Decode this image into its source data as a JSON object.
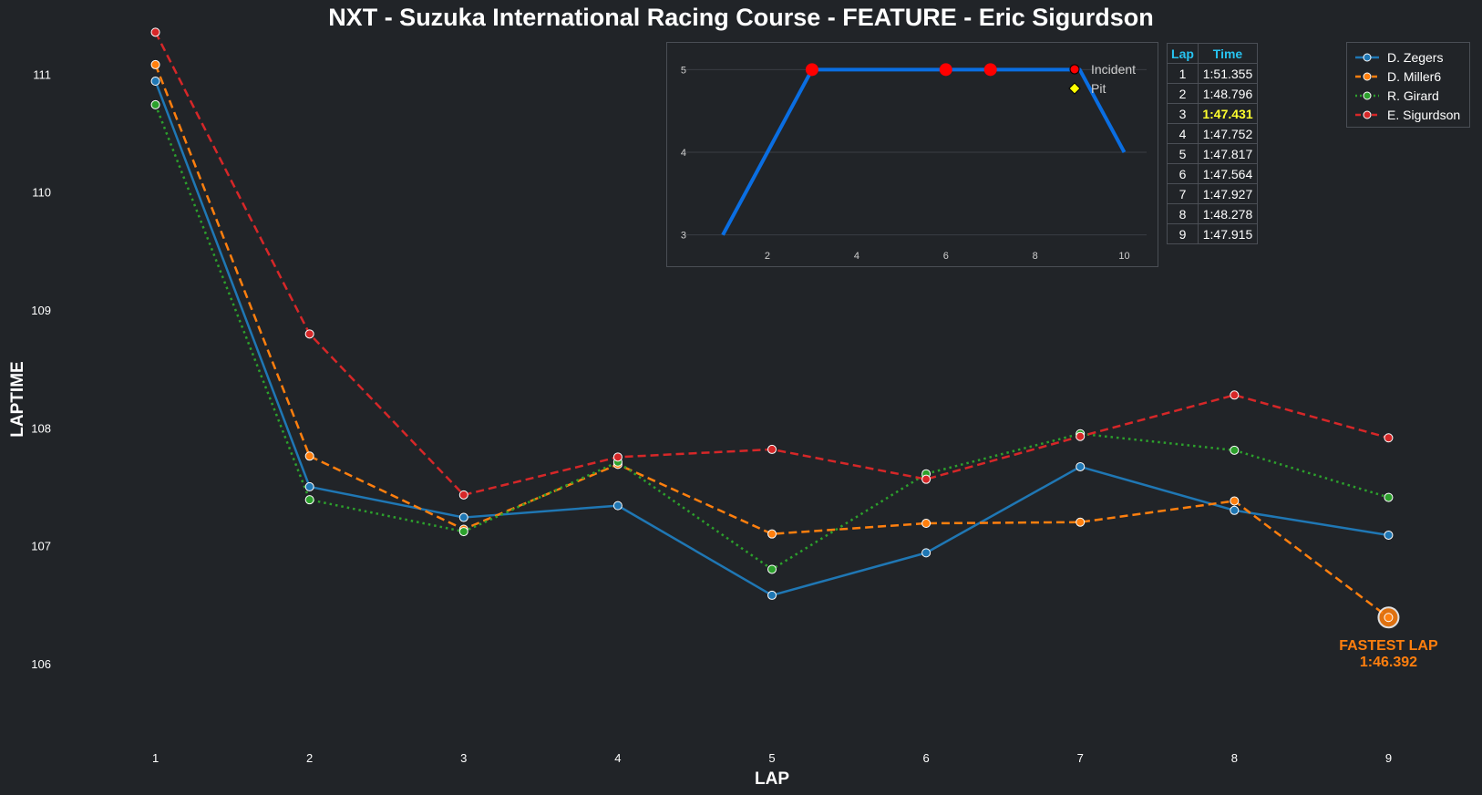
{
  "title": "NXT - Suzuka International Racing Course - FEATURE - Eric Sigurdson",
  "chart_data": [
    {
      "type": "line",
      "xlabel": "LAP",
      "ylabel": "LAPTIME",
      "x": [
        1,
        2,
        3,
        4,
        5,
        6,
        7,
        8,
        9
      ],
      "xlim": [
        0.5,
        9.5
      ],
      "ylim": [
        105.35,
        111.35
      ],
      "xticks": [
        "1",
        "2",
        "3",
        "4",
        "5",
        "6",
        "7",
        "8",
        "9"
      ],
      "yticks": [
        "106",
        "107",
        "108",
        "109",
        "110",
        "111"
      ],
      "grid": false,
      "legend_position": "top-right",
      "series": [
        {
          "name": "D. Zegers",
          "color": "#1f77b4",
          "dash": "solid",
          "values": [
            110.94,
            107.5,
            107.24,
            107.34,
            106.58,
            106.94,
            107.67,
            107.3,
            107.09
          ]
        },
        {
          "name": "D. Miller6",
          "color": "#ff7f0e",
          "dash": "dashed",
          "values": [
            111.08,
            107.76,
            107.14,
            107.69,
            107.1,
            107.19,
            107.2,
            107.38,
            106.392
          ]
        },
        {
          "name": "R. Girard",
          "color": "#2ca02c",
          "dash": "dotted",
          "values": [
            110.74,
            107.39,
            107.12,
            107.71,
            106.8,
            107.61,
            107.95,
            107.81,
            107.41
          ]
        },
        {
          "name": "E. Sigurdson",
          "color": "#d62728",
          "dash": "dashed",
          "values": [
            111.355,
            108.796,
            107.431,
            107.752,
            107.817,
            107.564,
            107.927,
            108.278,
            107.915
          ]
        }
      ],
      "annotation": {
        "line1": "FASTEST LAP",
        "line2": "1:46.392",
        "x": 9,
        "y": 106.392,
        "color": "#ff7f0e"
      }
    },
    {
      "type": "line",
      "name": "inset_positions",
      "x": [
        1,
        2,
        3,
        4,
        5,
        6,
        7,
        8,
        9,
        10
      ],
      "values": [
        3,
        4,
        5,
        5,
        5,
        5,
        5,
        5,
        5,
        4
      ],
      "xticks": [
        "2",
        "4",
        "6",
        "8",
        "10"
      ],
      "yticks": [
        "3",
        "4",
        "5"
      ],
      "xlim": [
        0.1,
        10.5
      ],
      "ylim": [
        5.18,
        2.82
      ],
      "line_color": "#0a6ee2",
      "incidents": [
        3,
        6,
        7
      ],
      "legend": [
        {
          "label": "Incident",
          "marker": "circle",
          "color": "#ff0000"
        },
        {
          "label": "Pit",
          "marker": "diamond",
          "color": "#ffff00"
        }
      ]
    }
  ],
  "lap_table": {
    "headers": [
      "Lap",
      "Time"
    ],
    "rows": [
      [
        "1",
        "1:51.355"
      ],
      [
        "2",
        "1:48.796"
      ],
      [
        "3",
        "1:47.431"
      ],
      [
        "4",
        "1:47.752"
      ],
      [
        "5",
        "1:47.817"
      ],
      [
        "6",
        "1:47.564"
      ],
      [
        "7",
        "1:47.927"
      ],
      [
        "8",
        "1:48.278"
      ],
      [
        "9",
        "1:47.915"
      ]
    ],
    "best_index": 2
  },
  "colors": {
    "background": "#212428",
    "text": "#ffffff",
    "header_accent": "#27c3f0",
    "best_lap": "#ffff2e",
    "border": "#4a4e55"
  }
}
